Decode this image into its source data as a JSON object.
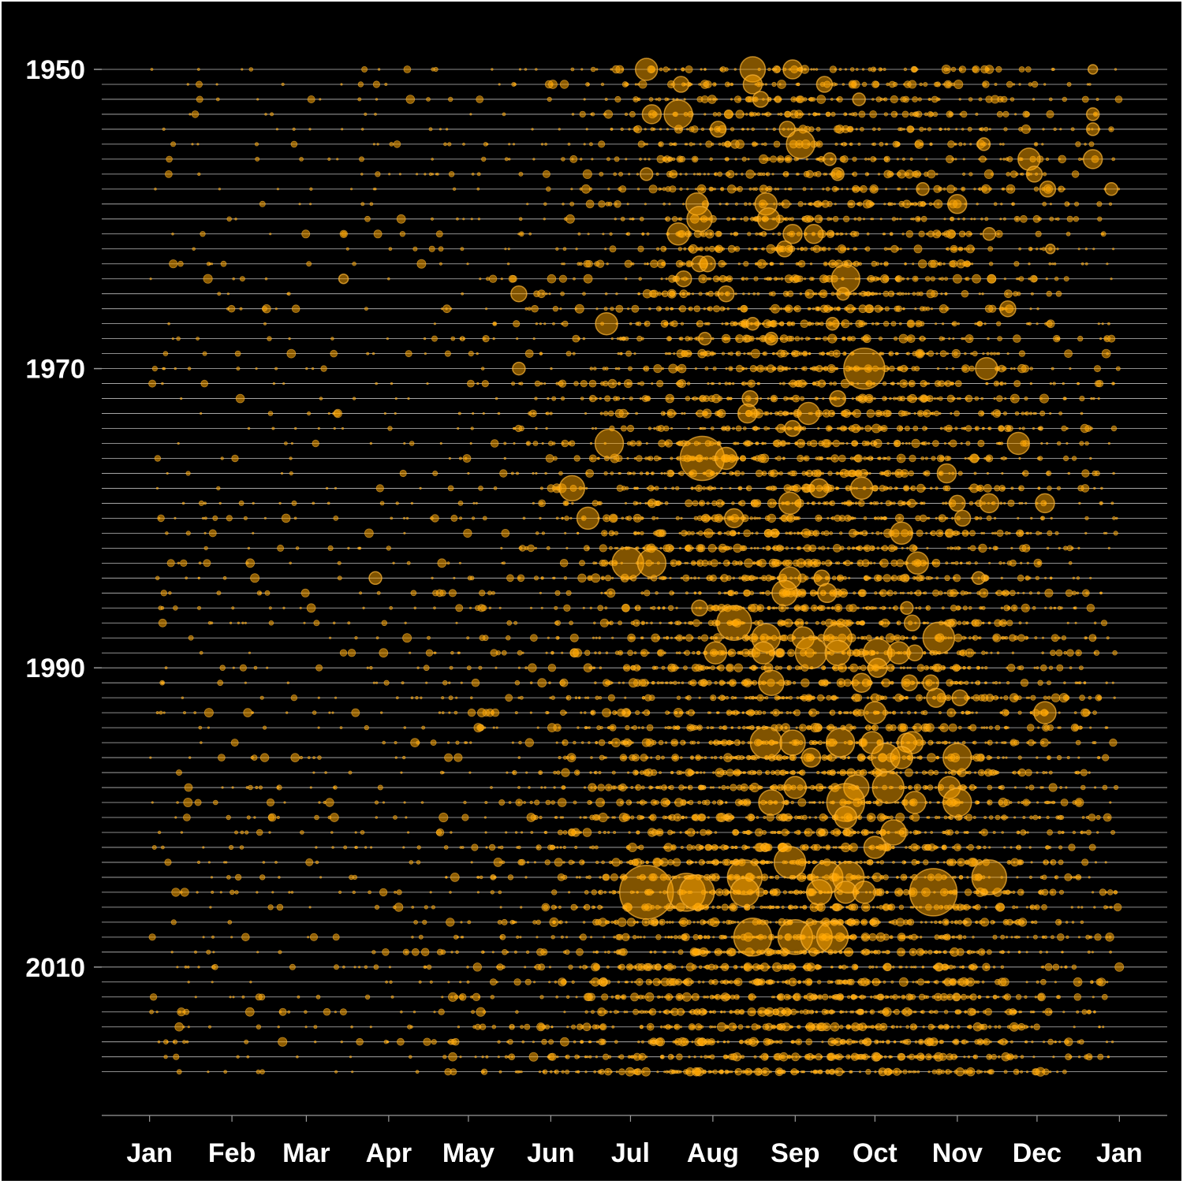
{
  "colors": {
    "background": "#000000",
    "gridline": "#bdbdbd",
    "axis": "#9a9a9a",
    "tick_text": "#ffffff",
    "point_fill": "#ffa500",
    "point_stroke": "#ffb733"
  },
  "chart_data": {
    "type": "scatter",
    "title": "",
    "xlabel": "",
    "ylabel": "",
    "x_tick_labels": [
      "Jan",
      "Feb",
      "Mar",
      "Apr",
      "May",
      "Jun",
      "Jul",
      "Aug",
      "Sep",
      "Oct",
      "Nov",
      "Dec",
      "Jan"
    ],
    "x_tick_days": [
      1,
      32,
      60,
      91,
      121,
      152,
      182,
      213,
      244,
      274,
      305,
      335,
      366
    ],
    "xlim_day": [
      -17,
      384
    ],
    "y_tick_labels": [
      "1950",
      "1970",
      "1990",
      "2010"
    ],
    "y_tick_years": [
      1950,
      1970,
      1990,
      2010
    ],
    "ylim_year": [
      1945.5,
      2023.5
    ],
    "y_reversed": true,
    "years": [
      1950,
      2017
    ],
    "grid": true,
    "legend": "none",
    "season_peak_day": 245,
    "points": [
      {
        "year": 1950,
        "day": 188,
        "size": 14
      },
      {
        "year": 1950,
        "day": 228,
        "size": 16
      },
      {
        "year": 1950,
        "day": 243,
        "size": 12
      },
      {
        "year": 1950,
        "day": 356,
        "size": 6
      },
      {
        "year": 1951,
        "day": 201,
        "size": 10
      },
      {
        "year": 1951,
        "day": 228,
        "size": 12
      },
      {
        "year": 1951,
        "day": 255,
        "size": 10
      },
      {
        "year": 1952,
        "day": 231,
        "size": 10
      },
      {
        "year": 1952,
        "day": 268,
        "size": 8
      },
      {
        "year": 1953,
        "day": 190,
        "size": 12
      },
      {
        "year": 1953,
        "day": 200,
        "size": 18
      },
      {
        "year": 1953,
        "day": 356,
        "size": 8
      },
      {
        "year": 1954,
        "day": 215,
        "size": 10
      },
      {
        "year": 1954,
        "day": 241,
        "size": 10
      },
      {
        "year": 1954,
        "day": 356,
        "size": 8
      },
      {
        "year": 1955,
        "day": 246,
        "size": 18
      },
      {
        "year": 1955,
        "day": 315,
        "size": 8
      },
      {
        "year": 1956,
        "day": 257,
        "size": 8
      },
      {
        "year": 1956,
        "day": 332,
        "size": 14
      },
      {
        "year": 1956,
        "day": 356,
        "size": 12
      },
      {
        "year": 1957,
        "day": 188,
        "size": 8
      },
      {
        "year": 1957,
        "day": 260,
        "size": 8
      },
      {
        "year": 1957,
        "day": 334,
        "size": 10
      },
      {
        "year": 1958,
        "day": 292,
        "size": 8
      },
      {
        "year": 1958,
        "day": 339,
        "size": 10
      },
      {
        "year": 1958,
        "day": 363,
        "size": 8
      },
      {
        "year": 1959,
        "day": 207,
        "size": 14
      },
      {
        "year": 1959,
        "day": 233,
        "size": 14
      },
      {
        "year": 1959,
        "day": 305,
        "size": 12
      },
      {
        "year": 1960,
        "day": 208,
        "size": 16
      },
      {
        "year": 1960,
        "day": 234,
        "size": 14
      },
      {
        "year": 1961,
        "day": 200,
        "size": 14
      },
      {
        "year": 1961,
        "day": 243,
        "size": 12
      },
      {
        "year": 1961,
        "day": 251,
        "size": 12
      },
      {
        "year": 1961,
        "day": 317,
        "size": 8
      },
      {
        "year": 1962,
        "day": 240,
        "size": 10
      },
      {
        "year": 1962,
        "day": 340,
        "size": 6
      },
      {
        "year": 1963,
        "day": 208,
        "size": 10
      },
      {
        "year": 1963,
        "day": 211,
        "size": 10
      },
      {
        "year": 1964,
        "day": 74,
        "size": 6
      },
      {
        "year": 1964,
        "day": 202,
        "size": 10
      },
      {
        "year": 1964,
        "day": 263,
        "size": 18
      },
      {
        "year": 1965,
        "day": 140,
        "size": 10
      },
      {
        "year": 1965,
        "day": 218,
        "size": 10
      },
      {
        "year": 1965,
        "day": 262,
        "size": 8
      },
      {
        "year": 1966,
        "day": 324,
        "size": 10
      },
      {
        "year": 1967,
        "day": 173,
        "size": 14
      },
      {
        "year": 1967,
        "day": 228,
        "size": 8
      },
      {
        "year": 1967,
        "day": 258,
        "size": 8
      },
      {
        "year": 1968,
        "day": 210,
        "size": 8
      },
      {
        "year": 1968,
        "day": 235,
        "size": 8
      },
      {
        "year": 1970,
        "day": 140,
        "size": 8
      },
      {
        "year": 1970,
        "day": 270,
        "size": 26
      },
      {
        "year": 1970,
        "day": 316,
        "size": 14
      },
      {
        "year": 1972,
        "day": 227,
        "size": 10
      },
      {
        "year": 1972,
        "day": 260,
        "size": 10
      },
      {
        "year": 1973,
        "day": 226,
        "size": 12
      },
      {
        "year": 1973,
        "day": 249,
        "size": 14
      },
      {
        "year": 1974,
        "day": 243,
        "size": 10
      },
      {
        "year": 1975,
        "day": 174,
        "size": 18
      },
      {
        "year": 1975,
        "day": 328,
        "size": 14
      },
      {
        "year": 1976,
        "day": 209,
        "size": 28
      },
      {
        "year": 1976,
        "day": 218,
        "size": 14
      },
      {
        "year": 1977,
        "day": 301,
        "size": 12
      },
      {
        "year": 1978,
        "day": 160,
        "size": 16
      },
      {
        "year": 1978,
        "day": 253,
        "size": 12
      },
      {
        "year": 1978,
        "day": 269,
        "size": 14
      },
      {
        "year": 1979,
        "day": 242,
        "size": 14
      },
      {
        "year": 1979,
        "day": 305,
        "size": 10
      },
      {
        "year": 1979,
        "day": 317,
        "size": 12
      },
      {
        "year": 1979,
        "day": 338,
        "size": 12
      },
      {
        "year": 1980,
        "day": 166,
        "size": 14
      },
      {
        "year": 1980,
        "day": 221,
        "size": 12
      },
      {
        "year": 1980,
        "day": 307,
        "size": 10
      },
      {
        "year": 1981,
        "day": 284,
        "size": 14
      },
      {
        "year": 1983,
        "day": 181,
        "size": 20
      },
      {
        "year": 1983,
        "day": 190,
        "size": 18
      },
      {
        "year": 1983,
        "day": 290,
        "size": 14
      },
      {
        "year": 1984,
        "day": 86,
        "size": 8
      },
      {
        "year": 1984,
        "day": 242,
        "size": 14
      },
      {
        "year": 1984,
        "day": 254,
        "size": 10
      },
      {
        "year": 1984,
        "day": 313,
        "size": 8
      },
      {
        "year": 1985,
        "day": 240,
        "size": 16
      },
      {
        "year": 1985,
        "day": 256,
        "size": 12
      },
      {
        "year": 1986,
        "day": 208,
        "size": 10
      },
      {
        "year": 1986,
        "day": 286,
        "size": 8
      },
      {
        "year": 1987,
        "day": 221,
        "size": 22
      },
      {
        "year": 1987,
        "day": 288,
        "size": 10
      },
      {
        "year": 1988,
        "day": 233,
        "size": 18
      },
      {
        "year": 1988,
        "day": 247,
        "size": 14
      },
      {
        "year": 1988,
        "day": 260,
        "size": 18
      },
      {
        "year": 1988,
        "day": 298,
        "size": 20
      },
      {
        "year": 1989,
        "day": 214,
        "size": 14
      },
      {
        "year": 1989,
        "day": 232,
        "size": 14
      },
      {
        "year": 1989,
        "day": 250,
        "size": 20
      },
      {
        "year": 1989,
        "day": 260,
        "size": 16
      },
      {
        "year": 1989,
        "day": 275,
        "size": 18
      },
      {
        "year": 1989,
        "day": 283,
        "size": 14
      },
      {
        "year": 1989,
        "day": 289,
        "size": 10
      },
      {
        "year": 1990,
        "day": 275,
        "size": 12
      },
      {
        "year": 1991,
        "day": 235,
        "size": 16
      },
      {
        "year": 1991,
        "day": 269,
        "size": 12
      },
      {
        "year": 1991,
        "day": 287,
        "size": 10
      },
      {
        "year": 1991,
        "day": 295,
        "size": 10
      },
      {
        "year": 1992,
        "day": 297,
        "size": 12
      },
      {
        "year": 1992,
        "day": 306,
        "size": 10
      },
      {
        "year": 1993,
        "day": 274,
        "size": 14
      },
      {
        "year": 1993,
        "day": 338,
        "size": 14
      },
      {
        "year": 1995,
        "day": 233,
        "size": 20
      },
      {
        "year": 1995,
        "day": 243,
        "size": 16
      },
      {
        "year": 1995,
        "day": 261,
        "size": 18
      },
      {
        "year": 1995,
        "day": 273,
        "size": 14
      },
      {
        "year": 1995,
        "day": 286,
        "size": 12
      },
      {
        "year": 1995,
        "day": 288,
        "size": 14
      },
      {
        "year": 1996,
        "day": 250,
        "size": 12
      },
      {
        "year": 1996,
        "day": 278,
        "size": 18
      },
      {
        "year": 1996,
        "day": 284,
        "size": 14
      },
      {
        "year": 1996,
        "day": 305,
        "size": 18
      },
      {
        "year": 1998,
        "day": 244,
        "size": 14
      },
      {
        "year": 1998,
        "day": 267,
        "size": 16
      },
      {
        "year": 1998,
        "day": 279,
        "size": 20
      },
      {
        "year": 1998,
        "day": 302,
        "size": 14
      },
      {
        "year": 1999,
        "day": 235,
        "size": 16
      },
      {
        "year": 1999,
        "day": 263,
        "size": 24
      },
      {
        "year": 1999,
        "day": 289,
        "size": 14
      },
      {
        "year": 1999,
        "day": 305,
        "size": 18
      },
      {
        "year": 2000,
        "day": 263,
        "size": 14
      },
      {
        "year": 2001,
        "day": 281,
        "size": 16
      },
      {
        "year": 2002,
        "day": 274,
        "size": 14
      },
      {
        "year": 2003,
        "day": 242,
        "size": 20
      },
      {
        "year": 2004,
        "day": 225,
        "size": 22
      },
      {
        "year": 2004,
        "day": 256,
        "size": 20
      },
      {
        "year": 2004,
        "day": 264,
        "size": 20
      },
      {
        "year": 2004,
        "day": 317,
        "size": 22
      },
      {
        "year": 2005,
        "day": 188,
        "size": 34
      },
      {
        "year": 2005,
        "day": 203,
        "size": 24
      },
      {
        "year": 2005,
        "day": 207,
        "size": 22
      },
      {
        "year": 2005,
        "day": 225,
        "size": 18
      },
      {
        "year": 2005,
        "day": 253,
        "size": 16
      },
      {
        "year": 2005,
        "day": 263,
        "size": 14
      },
      {
        "year": 2005,
        "day": 270,
        "size": 14
      },
      {
        "year": 2005,
        "day": 296,
        "size": 30
      },
      {
        "year": 2008,
        "day": 228,
        "size": 24
      },
      {
        "year": 2008,
        "day": 244,
        "size": 22
      },
      {
        "year": 2008,
        "day": 252,
        "size": 20
      },
      {
        "year": 2008,
        "day": 258,
        "size": 20
      }
    ]
  }
}
